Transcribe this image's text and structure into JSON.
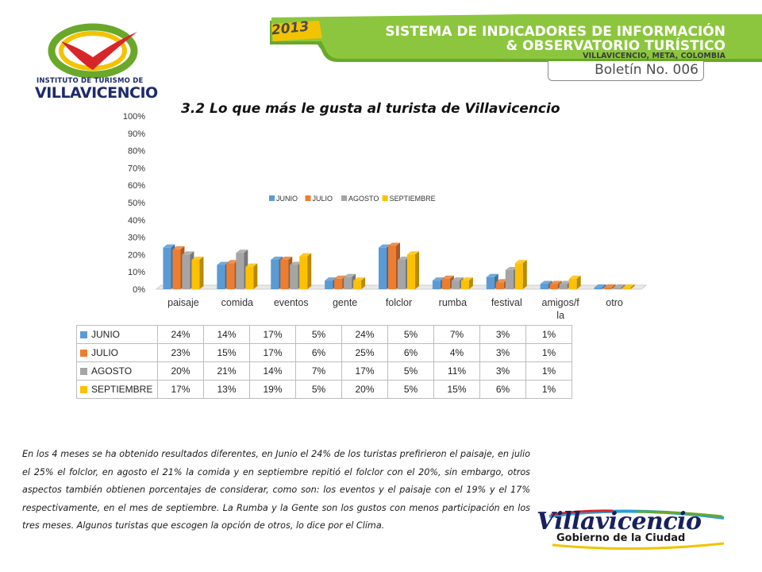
{
  "header": {
    "year": "2013",
    "line1": "SISTEMA DE INDICADORES DE INFORMACIÓN",
    "line2": "& OBSERVATORIO TURÍSTICO",
    "line3": "VILLAVICENCIO, META, COLOMBIA",
    "bulletin": "Boletín No. 006",
    "colors": {
      "banner": "#8cc63f",
      "banner_dark": "#6aa82a",
      "year_box": "#f2c300"
    }
  },
  "logo": {
    "line1": "INSTITUTO DE TURISMO DE",
    "line2": "VILLAVICENCIO",
    "icon": "heart-swoosh-icon"
  },
  "bottom_logo": {
    "name": "Villavicencio",
    "subtitle": "Gobierno de la Ciudad"
  },
  "chart_data": {
    "type": "bar",
    "title": "3.2 Lo que más le gusta al turista de Villavicencio",
    "categories": [
      "paisaje",
      "comida",
      "eventos",
      "gente",
      "folclor",
      "rumba",
      "festival",
      "amigos/f la",
      "otro"
    ],
    "category_lines": [
      [
        "paisaje"
      ],
      [
        "comida"
      ],
      [
        "eventos"
      ],
      [
        "gente"
      ],
      [
        "folclor"
      ],
      [
        "rumba"
      ],
      [
        "festival"
      ],
      [
        "amigos/f",
        "la"
      ],
      [
        "otro"
      ]
    ],
    "series": [
      {
        "name": "JUNIO",
        "color": "#5b9bd5",
        "values": [
          24,
          14,
          17,
          5,
          24,
          5,
          7,
          3,
          1
        ],
        "labels": [
          "24%",
          "14%",
          "17%",
          "5%",
          "24%",
          "5%",
          "7%",
          "3%",
          "1%"
        ]
      },
      {
        "name": "JULIO",
        "color": "#ed7d31",
        "values": [
          23,
          15,
          17,
          6,
          25,
          6,
          4,
          3,
          1
        ],
        "labels": [
          "23%",
          "15%",
          "17%",
          "6%",
          "25%",
          "6%",
          "4%",
          "3%",
          "1%"
        ]
      },
      {
        "name": "AGOSTO",
        "color": "#a5a5a5",
        "values": [
          20,
          21,
          14,
          7,
          17,
          5,
          11,
          3,
          1
        ],
        "labels": [
          "20%",
          "21%",
          "14%",
          "7%",
          "17%",
          "5%",
          "11%",
          "3%",
          "1%"
        ]
      },
      {
        "name": "SEPTIEMBRE",
        "color": "#ffc000",
        "values": [
          17,
          13,
          19,
          5,
          20,
          5,
          15,
          6,
          1
        ],
        "labels": [
          "17%",
          "13%",
          "19%",
          "5%",
          "20%",
          "5%",
          "15%",
          "6%",
          "1%"
        ]
      }
    ],
    "y_ticks": [
      "0%",
      "10%",
      "20%",
      "30%",
      "40%",
      "50%",
      "60%",
      "70%",
      "80%",
      "90%",
      "100%"
    ],
    "ylim": [
      0,
      100
    ],
    "legend_position": "top-center",
    "grid": false,
    "style": "3d-clustered-columns"
  },
  "paragraph": "En los 4 meses se ha obtenido resultados diferentes, en Junio el 24% de los turistas prefirieron el paisaje, en julio el 25% el folclor, en agosto el 21% la comida y en septiembre repitió el folclor con el 20%, sin embargo, otros aspectos también obtienen porcentajes de considerar, como son: los eventos y el paisaje con el 19% y el 17% respectivamente, en el mes de septiembre. La Rumba y la Gente son los gustos con menos participación en los tres meses. Algunos turistas que escogen la opción de otros, lo dice por el Clima."
}
